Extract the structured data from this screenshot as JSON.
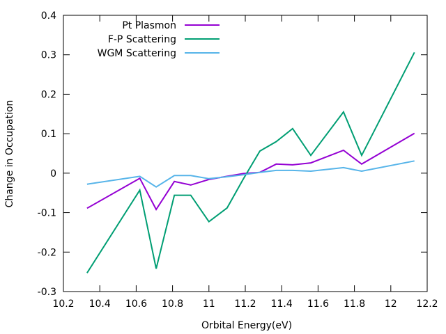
{
  "chart_data": {
    "type": "line",
    "title": "",
    "xlabel": "Orbital Energy(eV)",
    "ylabel": "Change in Occupation",
    "xlim": [
      10.2,
      12.2
    ],
    "ylim": [
      -0.3,
      0.4
    ],
    "xticks": [
      10.2,
      10.4,
      10.6,
      10.8,
      11,
      11.2,
      11.4,
      11.6,
      11.8,
      12,
      12.2
    ],
    "xtick_labels": [
      "10.2",
      "10.4",
      "10.6",
      "10.8",
      "11",
      "11.2",
      "11.4",
      "11.6",
      "11.8",
      "12",
      "12.2"
    ],
    "yticks": [
      -0.3,
      -0.2,
      -0.1,
      0,
      0.1,
      0.2,
      0.3,
      0.4
    ],
    "ytick_labels": [
      "-0.3",
      "-0.2",
      "-0.1",
      "0",
      "0.1",
      "0.2",
      "0.3",
      "0.4"
    ],
    "grid": false,
    "legend_position": "top-left",
    "series": [
      {
        "name": "Pt Plasmon",
        "color": "#9400d3",
        "x": [
          10.33,
          10.62,
          10.71,
          10.81,
          10.9,
          11.0,
          11.1,
          11.19,
          11.28,
          11.37,
          11.46,
          11.56,
          11.74,
          11.84,
          12.13
        ],
        "y": [
          -0.089,
          -0.013,
          -0.092,
          -0.021,
          -0.03,
          -0.016,
          -0.008,
          -0.001,
          0.002,
          0.023,
          0.021,
          0.026,
          0.058,
          0.023,
          0.101
        ]
      },
      {
        "name": "F-P Scattering",
        "color": "#009e73",
        "x": [
          10.33,
          10.62,
          10.71,
          10.81,
          10.9,
          11.0,
          11.1,
          11.19,
          11.28,
          11.37,
          11.46,
          11.56,
          11.74,
          11.84,
          12.13
        ],
        "y": [
          -0.253,
          -0.043,
          -0.242,
          -0.056,
          -0.056,
          -0.123,
          -0.088,
          -0.014,
          0.056,
          0.08,
          0.113,
          0.045,
          0.155,
          0.045,
          0.306
        ]
      },
      {
        "name": "WGM Scattering",
        "color": "#56b4e9",
        "x": [
          10.33,
          10.62,
          10.71,
          10.81,
          10.9,
          11.0,
          11.1,
          11.19,
          11.28,
          11.37,
          11.46,
          11.56,
          11.74,
          11.84,
          12.13
        ],
        "y": [
          -0.028,
          -0.008,
          -0.035,
          -0.006,
          -0.006,
          -0.014,
          -0.009,
          -0.004,
          0.002,
          0.007,
          0.007,
          0.005,
          0.014,
          0.005,
          0.031
        ]
      }
    ]
  }
}
